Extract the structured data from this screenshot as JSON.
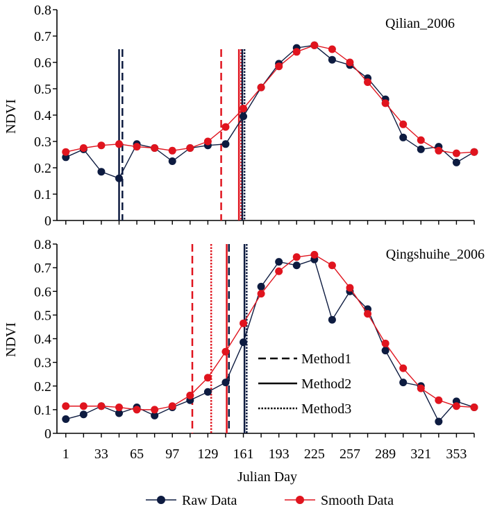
{
  "chart_data": [
    {
      "type": "line",
      "title": "Qilian_2006",
      "ylabel": "NDVI",
      "xlabel": "",
      "ylim": [
        0,
        0.8
      ],
      "yticks": [
        "0",
        "0.1",
        "0.2",
        "0.3",
        "0.4",
        "0.5",
        "0.6",
        "0.7",
        "0.8"
      ],
      "xlim": [
        -7,
        369
      ],
      "x": [
        1,
        17,
        33,
        49,
        65,
        81,
        97,
        113,
        129,
        145,
        161,
        177,
        193,
        209,
        225,
        241,
        257,
        273,
        289,
        305,
        321,
        337,
        353,
        369
      ],
      "series": [
        {
          "name": "Raw Data",
          "color": "#0d1b40",
          "values": [
            0.24,
            0.27,
            0.185,
            0.16,
            0.29,
            0.275,
            0.225,
            0.275,
            0.285,
            0.29,
            0.395,
            0.505,
            0.595,
            0.655,
            0.665,
            0.61,
            0.59,
            0.54,
            0.46,
            0.315,
            0.27,
            0.28,
            0.22,
            0.26
          ]
        },
        {
          "name": "Smooth Data",
          "color": "#e0141e",
          "values": [
            0.26,
            0.275,
            0.285,
            0.29,
            0.28,
            0.275,
            0.265,
            0.275,
            0.3,
            0.355,
            0.425,
            0.505,
            0.585,
            0.64,
            0.665,
            0.65,
            0.6,
            0.525,
            0.445,
            0.365,
            0.305,
            0.265,
            0.255,
            0.26
          ]
        }
      ],
      "vlines": [
        {
          "method": "Method1",
          "x": 52,
          "color": "#0d1b40",
          "style": "dashed"
        },
        {
          "method": "Method2",
          "x": 49,
          "color": "#0d1b40",
          "style": "solid"
        },
        {
          "method": "Method1",
          "x": 141,
          "color": "#e0141e",
          "style": "dashed"
        },
        {
          "method": "Method2",
          "x": 157,
          "color": "#e0141e",
          "style": "solid"
        },
        {
          "method": "Method3",
          "x": 159,
          "color": "#e0141e",
          "style": "dotted"
        },
        {
          "method": "Method2",
          "x": 160,
          "color": "#0d1b40",
          "style": "solid"
        },
        {
          "method": "Method3",
          "x": 162,
          "color": "#0d1b40",
          "style": "dotted"
        }
      ]
    },
    {
      "type": "line",
      "title": "Qingshuihe_2006",
      "ylabel": "NDVI",
      "xlabel": "Julian Day",
      "ylim": [
        0,
        0.8
      ],
      "yticks": [
        "0",
        "0.1",
        "0.2",
        "0.3",
        "0.4",
        "0.5",
        "0.6",
        "0.7",
        "0.8"
      ],
      "xlim": [
        -7,
        369
      ],
      "xticks": [
        1,
        33,
        65,
        97,
        129,
        161,
        193,
        225,
        257,
        289,
        321,
        353
      ],
      "x": [
        1,
        17,
        33,
        49,
        65,
        81,
        97,
        113,
        129,
        145,
        161,
        177,
        193,
        209,
        225,
        241,
        257,
        273,
        289,
        305,
        321,
        337,
        353,
        369
      ],
      "series": [
        {
          "name": "Raw Data",
          "color": "#0d1b40",
          "values": [
            0.06,
            0.08,
            0.115,
            0.085,
            0.11,
            0.075,
            0.11,
            0.14,
            0.175,
            0.215,
            0.385,
            0.62,
            0.725,
            0.71,
            0.735,
            0.48,
            0.6,
            0.525,
            0.35,
            0.215,
            0.2,
            0.05,
            0.135,
            0.11
          ]
        },
        {
          "name": "Smooth Data",
          "color": "#e0141e",
          "values": [
            0.115,
            0.115,
            0.115,
            0.11,
            0.1,
            0.1,
            0.115,
            0.16,
            0.235,
            0.345,
            0.465,
            0.59,
            0.685,
            0.745,
            0.755,
            0.71,
            0.615,
            0.505,
            0.38,
            0.275,
            0.19,
            0.14,
            0.115,
            0.11
          ]
        }
      ],
      "vlines": [
        {
          "method": "Method1",
          "x": 115,
          "color": "#e0141e",
          "style": "dashed"
        },
        {
          "method": "Method3",
          "x": 132,
          "color": "#e0141e",
          "style": "dotted"
        },
        {
          "method": "Method2",
          "x": 146,
          "color": "#e0141e",
          "style": "solid"
        },
        {
          "method": "Method1",
          "x": 148,
          "color": "#0d1b40",
          "style": "dashed"
        },
        {
          "method": "Method2",
          "x": 162,
          "color": "#0d1b40",
          "style": "solid"
        },
        {
          "method": "Method3",
          "x": 164,
          "color": "#0d1b40",
          "style": "dotted"
        }
      ]
    }
  ],
  "method_legend": [
    {
      "label": "Method1",
      "style": "dashed"
    },
    {
      "label": "Method2",
      "style": "solid"
    },
    {
      "label": "Method3",
      "style": "dotted"
    }
  ],
  "series_legend": [
    {
      "label": "Raw Data",
      "color": "#0d1b40"
    },
    {
      "label": "Smooth Data",
      "color": "#e0141e"
    }
  ]
}
